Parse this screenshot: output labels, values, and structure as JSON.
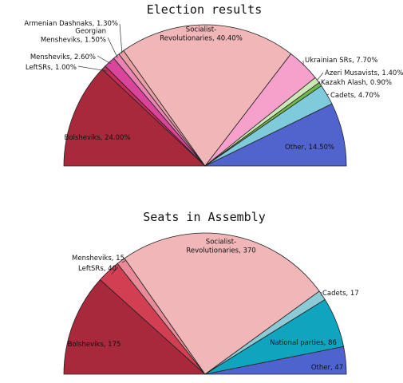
{
  "chart_data": [
    {
      "type": "pie",
      "variant": "half-donut-semicircle",
      "title": "Election results",
      "unit": "percent",
      "slices": [
        {
          "name": "Bolsheviks",
          "value": 24.0,
          "label": "Bolsheviks, 24.00%",
          "color": "#a8283c"
        },
        {
          "name": "Left SRs",
          "value": 1.0,
          "label": "LeftSRs, 1.00%",
          "color": "#c2305a"
        },
        {
          "name": "Mensheviks",
          "value": 2.6,
          "label": "Mensheviks, 2.60%",
          "color": "#d8459a"
        },
        {
          "name": "Georgian Mensheviks",
          "value": 1.5,
          "label": "Georgian\nMensheviks, 1.50%",
          "color": "#ea82b2"
        },
        {
          "name": "Armenian Dashnaks",
          "value": 1.3,
          "label": "Armenian Dashnaks, 1.30%",
          "color": "#e8a0a4"
        },
        {
          "name": "Socialist-Revolutionaries",
          "value": 40.4,
          "label": "Socialist-\nRevolutionaries, 40.40%",
          "color": "#f0b6b8"
        },
        {
          "name": "Ukrainian SRs",
          "value": 7.7,
          "label": "Ukrainian SRs, 7.70%",
          "color": "#f6a0cc"
        },
        {
          "name": "Azeri Musavists",
          "value": 1.4,
          "label": "Azeri Musavists, 1.40%",
          "color": "#cde8b6"
        },
        {
          "name": "Kazakh Alash",
          "value": 0.9,
          "label": "Kazakh Alash, 0.90%",
          "color": "#73b84a"
        },
        {
          "name": "Cadets",
          "value": 4.7,
          "label": "Cadets, 4.70%",
          "color": "#7fcadb"
        },
        {
          "name": "Other",
          "value": 14.5,
          "label": "Other, 14.50%",
          "color": "#5163cc"
        }
      ]
    },
    {
      "type": "pie",
      "variant": "half-donut-semicircle",
      "title": "Seats in Assembly",
      "unit": "seats",
      "slices": [
        {
          "name": "Bolsheviks",
          "value": 175,
          "label": "Bolsheviks, 175",
          "color": "#a8283c"
        },
        {
          "name": "Left SRs",
          "value": 40,
          "label": "LeftSRs, 40",
          "color": "#d23f53"
        },
        {
          "name": "Mensheviks",
          "value": 15,
          "label": "Mensheviks, 15",
          "color": "#e88a98"
        },
        {
          "name": "Socialist-Revolutionaries",
          "value": 370,
          "label": "Socialist-\nRevolutionaries, 370",
          "color": "#f0b6b8"
        },
        {
          "name": "Cadets",
          "value": 17,
          "label": "Cadets, 17",
          "color": "#8ccbd6"
        },
        {
          "name": "National parties",
          "value": 86,
          "label": "National parties, 86",
          "color": "#10a5bf"
        },
        {
          "name": "Other",
          "value": 47,
          "label": "Other, 47",
          "color": "#4f63cf"
        }
      ]
    }
  ]
}
